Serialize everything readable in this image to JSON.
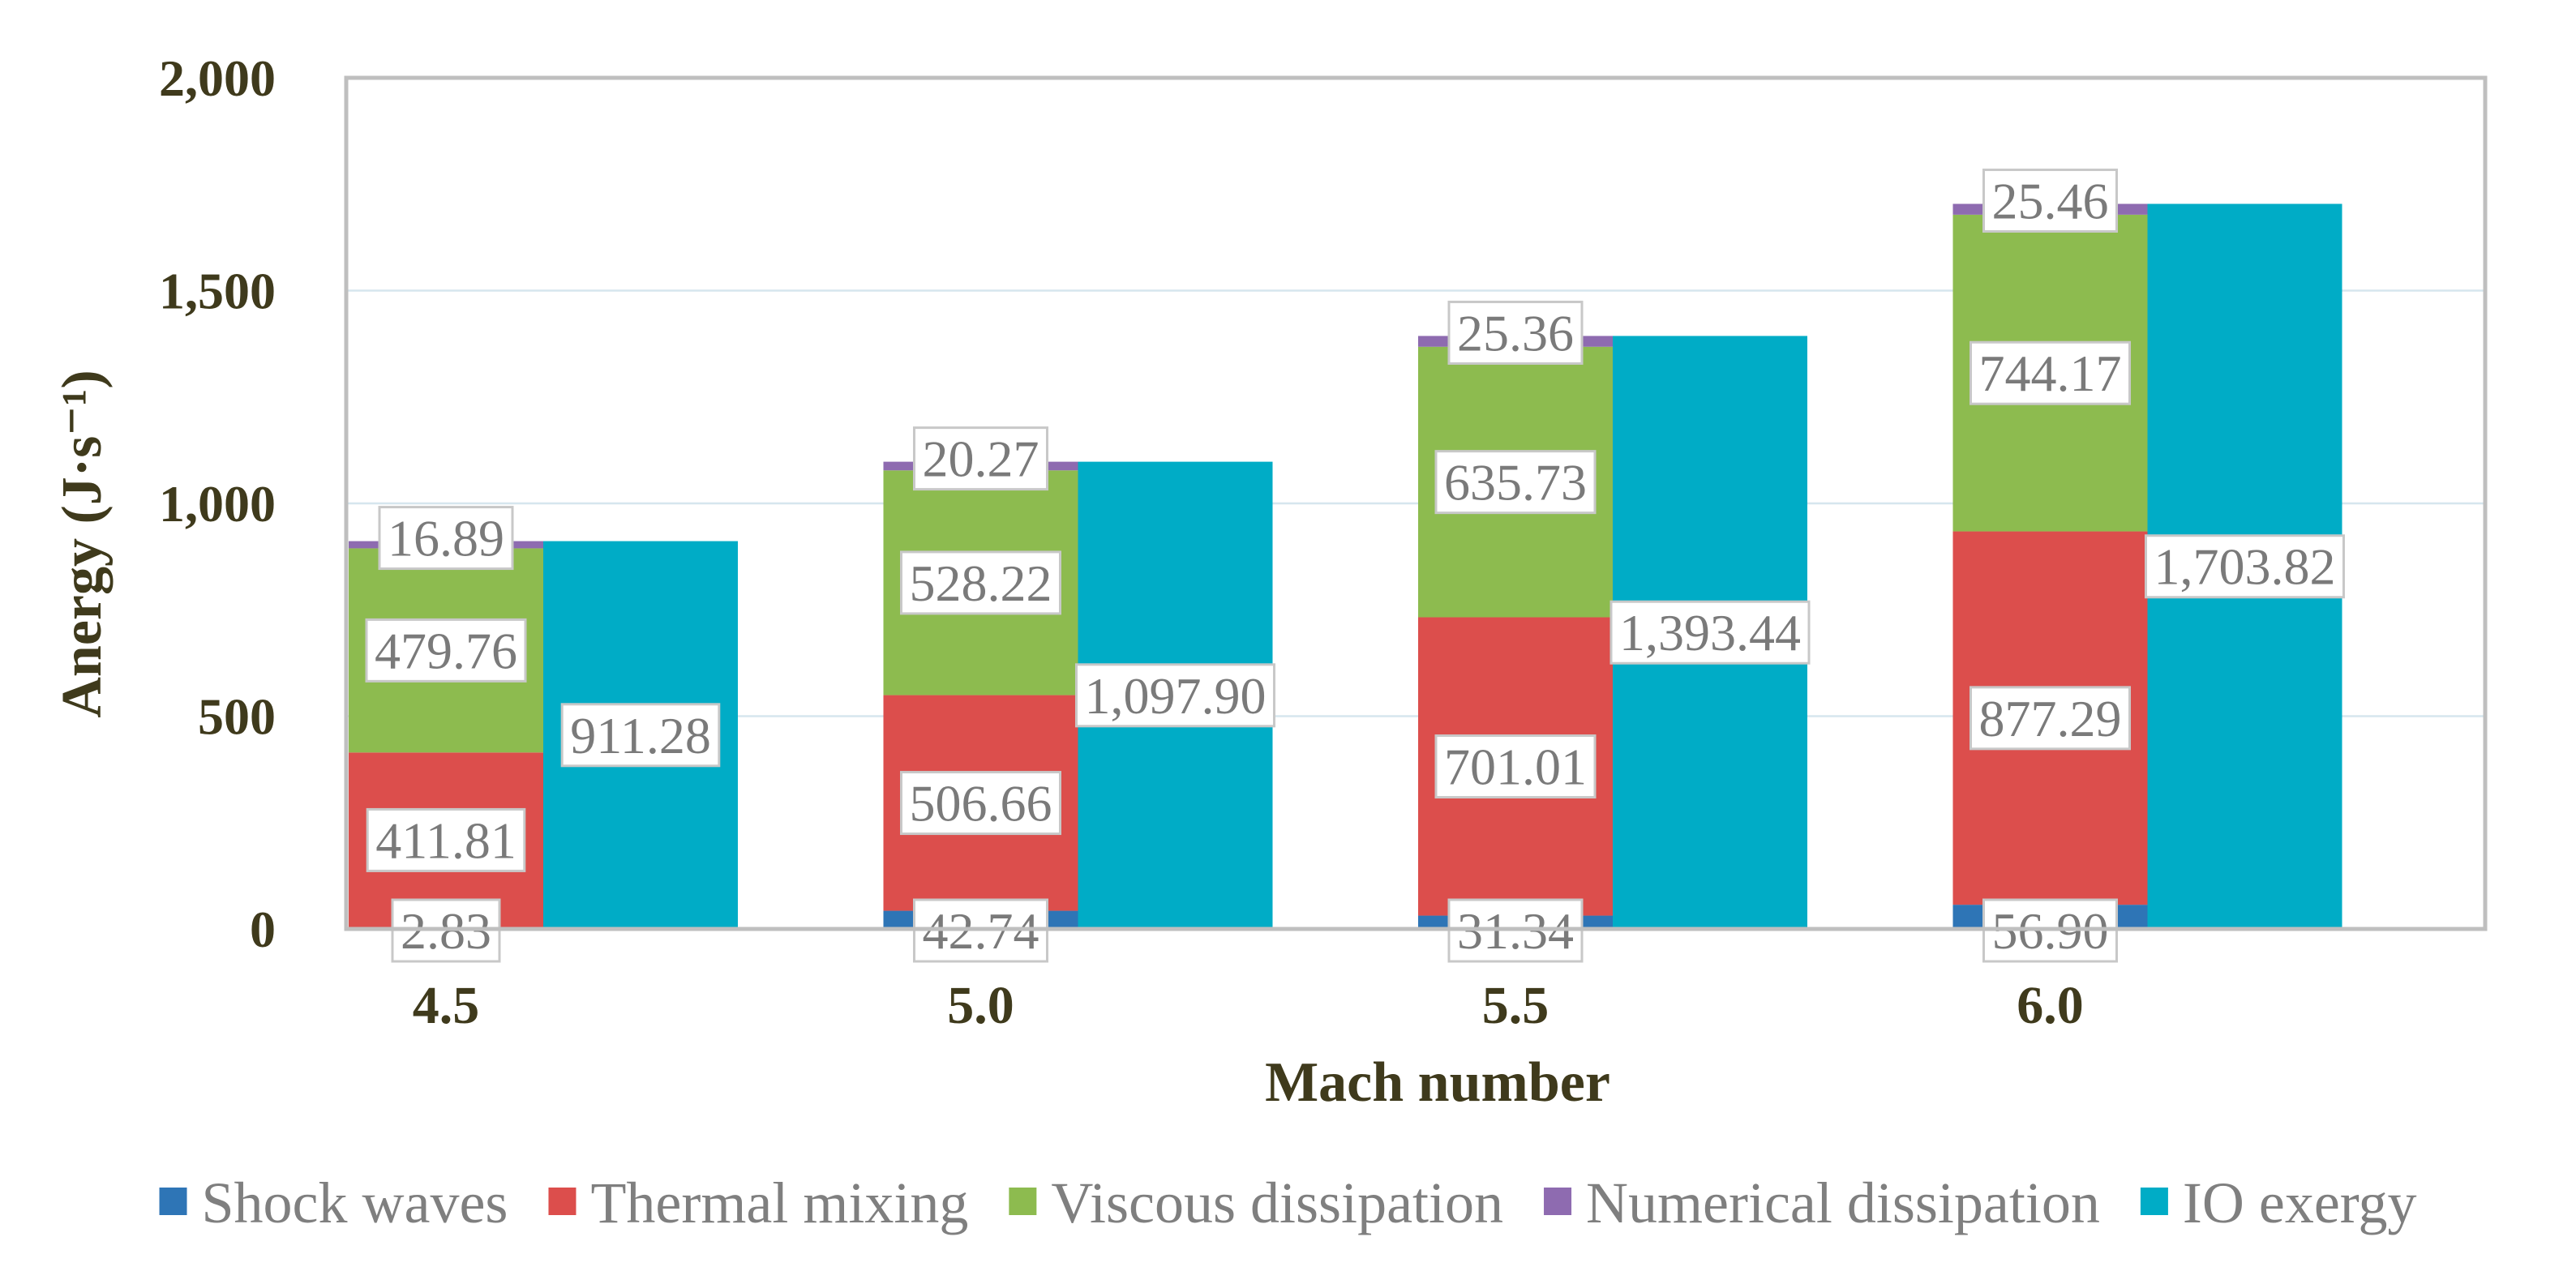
{
  "chart_data": {
    "type": "bar",
    "title": "",
    "xlabel": "Mach number",
    "ylabel": "Anergy (J·s⁻¹)",
    "ylim": [
      0,
      2000
    ],
    "yticks": [
      0,
      500,
      1000,
      1500,
      2000
    ],
    "ytick_labels": [
      "0",
      "500",
      "1,000",
      "1,500",
      "2,000"
    ],
    "grid": true,
    "legend_position": "bottom",
    "categories": [
      "4.5",
      "5.0",
      "5.5",
      "6.0"
    ],
    "stacked_series": [
      {
        "name": "Shock waves",
        "color": "#2e75b6",
        "values": [
          2.83,
          42.74,
          31.34,
          56.9
        ],
        "labels": [
          "2.83",
          "42.74",
          "31.34",
          "56.90"
        ]
      },
      {
        "name": "Thermal mixing",
        "color": "#dc4e4c",
        "values": [
          411.81,
          506.66,
          701.01,
          877.29
        ],
        "labels": [
          "411.81",
          "506.66",
          "701.01",
          "877.29"
        ]
      },
      {
        "name": "Viscous dissipation",
        "color": "#8dbb4f",
        "values": [
          479.76,
          528.22,
          635.73,
          744.17
        ],
        "labels": [
          "479.76",
          "528.22",
          "635.73",
          "744.17"
        ]
      },
      {
        "name": "Numerical dissipation",
        "color": "#8e6bb0",
        "values": [
          16.89,
          20.27,
          25.36,
          25.46
        ],
        "labels": [
          "16.89",
          "20.27",
          "25.36",
          "25.46"
        ]
      }
    ],
    "single_series": {
      "name": "IO exergy",
      "color": "#00acc6",
      "values": [
        911.28,
        1097.9,
        1393.44,
        1703.82
      ],
      "labels": [
        "911.28",
        "1,097.90",
        "1,393.44",
        "1,703.82"
      ]
    }
  }
}
